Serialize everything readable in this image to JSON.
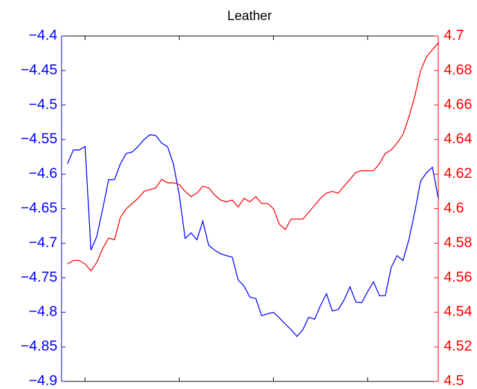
{
  "chart_data": {
    "type": "line",
    "title": "Leather",
    "x": [
      1993.25,
      1993.5,
      1993.75,
      1994,
      1994.25,
      1994.5,
      1994.75,
      1995,
      1995.25,
      1995.5,
      1995.75,
      1996,
      1996.25,
      1996.5,
      1996.75,
      1997,
      1997.25,
      1997.5,
      1997.75,
      1998,
      1998.25,
      1998.5,
      1998.75,
      1999,
      1999.25,
      1999.5,
      1999.75,
      2000,
      2000.25,
      2000.5,
      2000.75,
      2001,
      2001.25,
      2001.5,
      2001.75,
      2002,
      2002.25,
      2002.5,
      2002.75,
      2003,
      2003.25,
      2003.5,
      2003.75,
      2004,
      2004.25,
      2004.5,
      2004.75,
      2005,
      2005.25,
      2005.5,
      2005.75,
      2006,
      2006.25,
      2006.5,
      2006.75,
      2007,
      2007.25,
      2007.5,
      2007.75,
      2008,
      2008.25,
      2008.5,
      2008.75,
      2009
    ],
    "series": [
      {
        "color": "#0000ff",
        "values": [
          -4.585,
          -4.565,
          -4.565,
          -4.56,
          -4.71,
          -4.69,
          -4.65,
          -4.608,
          -4.608,
          -4.585,
          -4.57,
          -4.568,
          -4.56,
          -4.55,
          -4.543,
          -4.544,
          -4.555,
          -4.56,
          -4.585,
          -4.63,
          -4.693,
          -4.685,
          -4.695,
          -4.668,
          -4.703,
          -4.71,
          -4.715,
          -4.718,
          -4.72,
          -4.753,
          -4.762,
          -4.778,
          -4.78,
          -4.805,
          -4.802,
          -4.8,
          -4.808,
          -4.817,
          -4.825,
          -4.835,
          -4.825,
          -4.807,
          -4.81,
          -4.79,
          -4.773,
          -4.798,
          -4.796,
          -4.782,
          -4.763,
          -4.785,
          -4.786,
          -4.77,
          -4.756,
          -4.776,
          -4.776,
          -4.735,
          -4.718,
          -4.725,
          -4.695,
          -4.655,
          -4.61,
          -4.598,
          -4.59,
          -4.635
        ]
      },
      {
        "color": "#ff0000",
        "axis": "y2",
        "values": [
          4.568,
          4.57,
          4.57,
          4.568,
          4.564,
          4.569,
          4.577,
          4.583,
          4.582,
          4.595,
          4.6,
          4.603,
          4.606,
          4.61,
          4.611,
          4.612,
          4.617,
          4.615,
          4.615,
          4.614,
          4.61,
          4.607,
          4.609,
          4.613,
          4.612,
          4.608,
          4.605,
          4.604,
          4.605,
          4.601,
          4.606,
          4.604,
          4.607,
          4.603,
          4.603,
          4.6,
          4.591,
          4.588,
          4.594,
          4.594,
          4.594,
          4.598,
          4.602,
          4.606,
          4.609,
          4.61,
          4.609,
          4.613,
          4.617,
          4.621,
          4.622,
          4.622,
          4.622,
          4.626,
          4.632,
          4.634,
          4.638,
          4.643,
          4.653,
          4.665,
          4.68,
          4.688,
          4.692,
          4.696
        ]
      }
    ],
    "xlim": [
      1993,
      2009
    ],
    "xticks": [
      1994,
      1998,
      2002,
      2006
    ],
    "ylim": [
      -4.9,
      -4.4
    ],
    "yticks": [
      {
        "value": -4.9,
        "label": "−4.9"
      },
      {
        "value": -4.85,
        "label": "−4.85"
      },
      {
        "value": -4.8,
        "label": "−4.8"
      },
      {
        "value": -4.75,
        "label": "−4.75"
      },
      {
        "value": -4.7,
        "label": "−4.7"
      },
      {
        "value": -4.65,
        "label": "−4.65"
      },
      {
        "value": -4.6,
        "label": "−4.6"
      },
      {
        "value": -4.55,
        "label": "−4.55"
      },
      {
        "value": -4.5,
        "label": "−4.5"
      },
      {
        "value": -4.45,
        "label": "−4.45"
      },
      {
        "value": -4.4,
        "label": "−4.4"
      }
    ],
    "y2lim": [
      4.5,
      4.7
    ],
    "y2ticks": [
      4.5,
      4.52,
      4.54,
      4.56,
      4.58,
      4.6,
      4.62,
      4.64,
      4.66,
      4.68,
      4.7
    ],
    "grid": false
  }
}
